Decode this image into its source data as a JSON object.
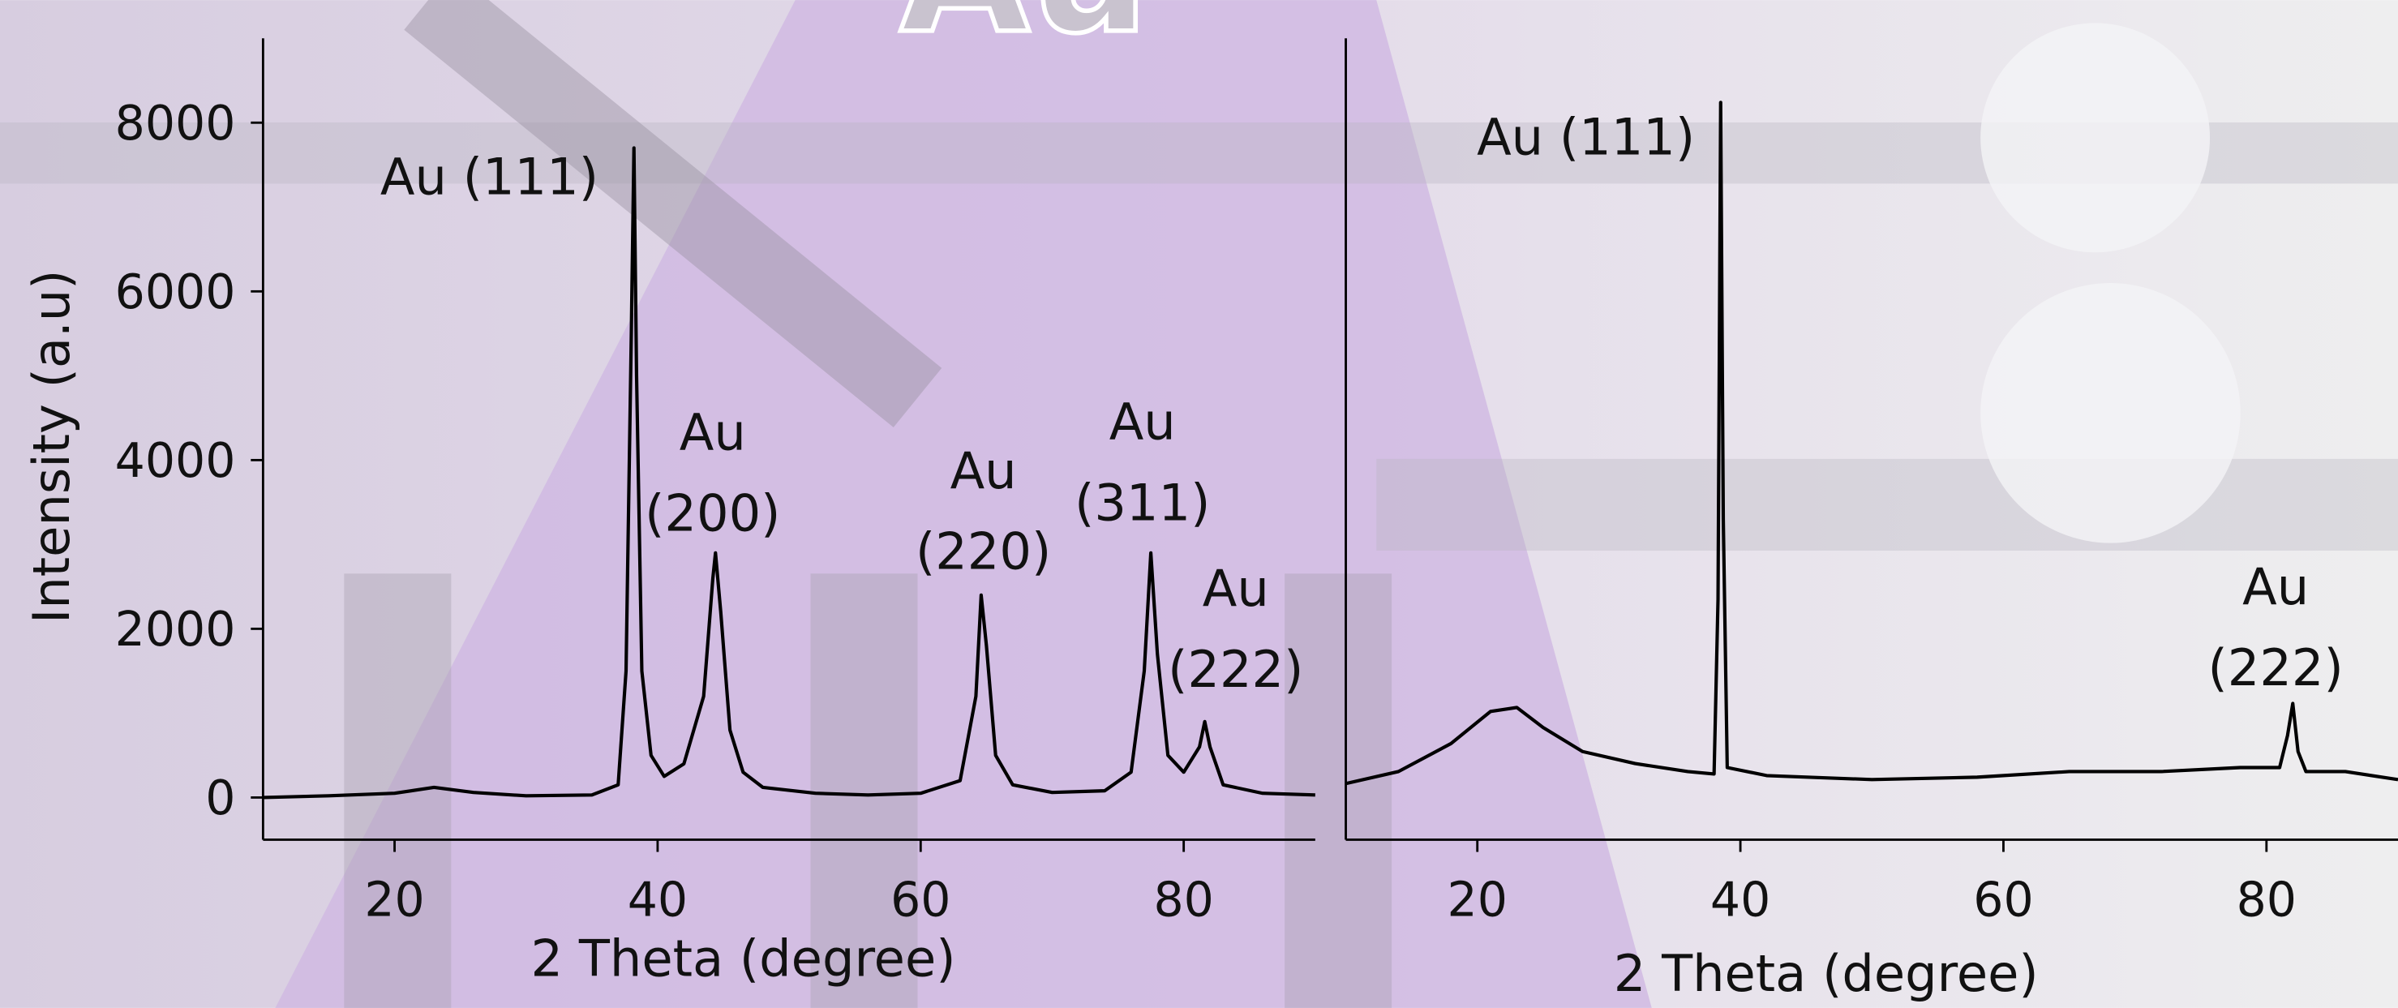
{
  "watermark": "Au",
  "chart_data": [
    {
      "type": "line",
      "ylabel": "Intensity (a.u)",
      "xlabel": "2 Theta (degree)",
      "color": "#000000",
      "xlim": [
        10,
        90
      ],
      "xticks": [
        20,
        40,
        60,
        80
      ],
      "ylim": [
        -500,
        9000
      ],
      "yticks": [
        0,
        2000,
        4000,
        6000,
        8000
      ],
      "x": [
        10,
        15,
        20,
        23,
        26,
        30,
        35,
        37,
        37.6,
        38.0,
        38.2,
        38.4,
        38.8,
        39.5,
        40.5,
        42,
        43.5,
        44.2,
        44.4,
        44.8,
        45.5,
        46.5,
        48,
        52,
        56,
        60,
        63,
        64.2,
        64.6,
        65.0,
        65.7,
        67,
        70,
        74,
        76,
        77.0,
        77.5,
        78.0,
        78.8,
        80,
        81.2,
        81.6,
        82.0,
        83,
        86,
        90
      ],
      "values": [
        0,
        20,
        50,
        120,
        60,
        20,
        30,
        150,
        1500,
        5500,
        7700,
        5000,
        1500,
        500,
        250,
        400,
        1200,
        2600,
        2900,
        2200,
        800,
        300,
        120,
        50,
        30,
        50,
        200,
        1200,
        2400,
        1800,
        500,
        150,
        60,
        80,
        300,
        1500,
        2900,
        1700,
        500,
        300,
        600,
        900,
        600,
        150,
        50,
        30
      ],
      "annotations": [
        [
          "Au (111)"
        ],
        [
          "Au",
          "(200)"
        ],
        [
          "Au",
          "(220)"
        ],
        [
          "Au",
          "(311)"
        ],
        [
          "Au",
          "(222)"
        ]
      ]
    },
    {
      "type": "line",
      "xlabel": "2 Theta (degree)",
      "color": "#000000",
      "xlim": [
        10,
        90
      ],
      "xticks": [
        20,
        40,
        60,
        80
      ],
      "ylim": [
        0,
        100
      ],
      "x": [
        10,
        14,
        18,
        21,
        23,
        25,
        28,
        32,
        36,
        38,
        38.3,
        38.5,
        38.7,
        39.0,
        42,
        50,
        58,
        65,
        72,
        78,
        81,
        81.6,
        82,
        82.4,
        83,
        86,
        90
      ],
      "values": [
        7,
        8.5,
        12,
        16,
        16.5,
        14,
        11,
        9.5,
        8.5,
        8.2,
        30,
        92,
        40,
        9,
        8,
        7.5,
        7.8,
        8.5,
        8.5,
        9,
        9,
        13,
        17,
        11,
        8.5,
        8.5,
        7.5
      ],
      "annotations": [
        [
          "Au (111)"
        ],
        [
          "Au",
          "(222)"
        ]
      ]
    }
  ]
}
